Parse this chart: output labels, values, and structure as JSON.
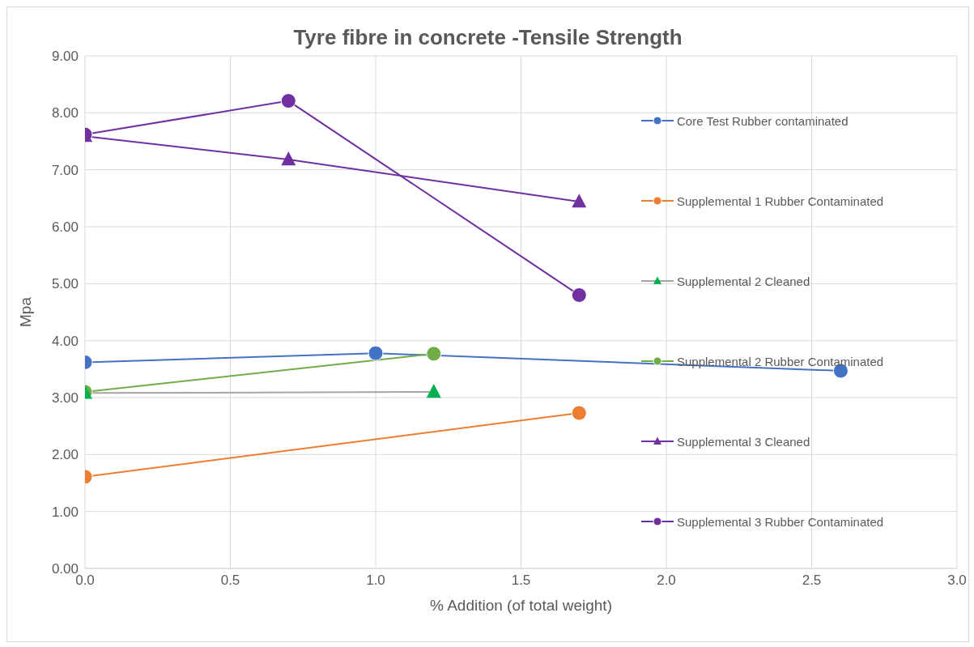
{
  "chart_data": {
    "type": "line",
    "title": "Tyre fibre in concrete -Tensile Strength",
    "xlabel": "% Addition (of total weight)",
    "ylabel": "Mpa",
    "xlim": [
      0,
      3
    ],
    "xticks": [
      {
        "value": 0,
        "label": "0.0"
      },
      {
        "value": 0.5,
        "label": "0.5"
      },
      {
        "value": 1,
        "label": "1.0"
      },
      {
        "value": 1.5,
        "label": "1.5"
      },
      {
        "value": 2,
        "label": "2.0"
      },
      {
        "value": 2.5,
        "label": "2.5"
      },
      {
        "value": 3,
        "label": "3.0"
      }
    ],
    "ylim": [
      0,
      9
    ],
    "yticks": [
      {
        "value": 0,
        "label": "0.00"
      },
      {
        "value": 1,
        "label": "1.00"
      },
      {
        "value": 2,
        "label": "2.00"
      },
      {
        "value": 3,
        "label": "3.00"
      },
      {
        "value": 4,
        "label": "4.00"
      },
      {
        "value": 5,
        "label": "5.00"
      },
      {
        "value": 6,
        "label": "6.00"
      },
      {
        "value": 7,
        "label": "7.00"
      },
      {
        "value": 8,
        "label": "8.00"
      },
      {
        "value": 9,
        "label": "9.00"
      }
    ],
    "grid": true,
    "legend": "right",
    "line_style": "solid",
    "series": [
      {
        "name": "Core Test Rubber contaminated",
        "color": "#4472c4",
        "marker": "circle",
        "x": [
          0,
          1.0,
          2.6
        ],
        "values": [
          3.62,
          3.78,
          3.47
        ]
      },
      {
        "name": "Supplemental 1 Rubber Contaminated",
        "color": "#ed7d31",
        "marker": "circle",
        "x": [
          0,
          1.7
        ],
        "values": [
          1.61,
          2.73
        ]
      },
      {
        "name": "Supplemental 2 Cleaned",
        "color": "#a5a5a5",
        "colors": [
          "#00b050",
          "#00b050"
        ],
        "marker": "triangle",
        "x": [
          0,
          1.2
        ],
        "values": [
          3.08,
          3.1
        ]
      },
      {
        "name": "Supplemental 2 Rubber Contaminated",
        "color": "#70ad47",
        "marker": "circle",
        "x": [
          0,
          1.2
        ],
        "values": [
          3.1,
          3.77
        ]
      },
      {
        "name": "Supplemental 3 Cleaned",
        "color": "#7030a0",
        "marker": "triangle",
        "x": [
          0,
          0.7,
          1.7
        ],
        "values": [
          7.59,
          7.18,
          6.44
        ]
      },
      {
        "name": "Supplemental 3 Rubber Contaminated",
        "color": "#7030a0",
        "marker": "circle",
        "x": [
          0,
          0.7,
          1.7
        ],
        "values": [
          7.62,
          8.21,
          4.8
        ]
      }
    ]
  }
}
